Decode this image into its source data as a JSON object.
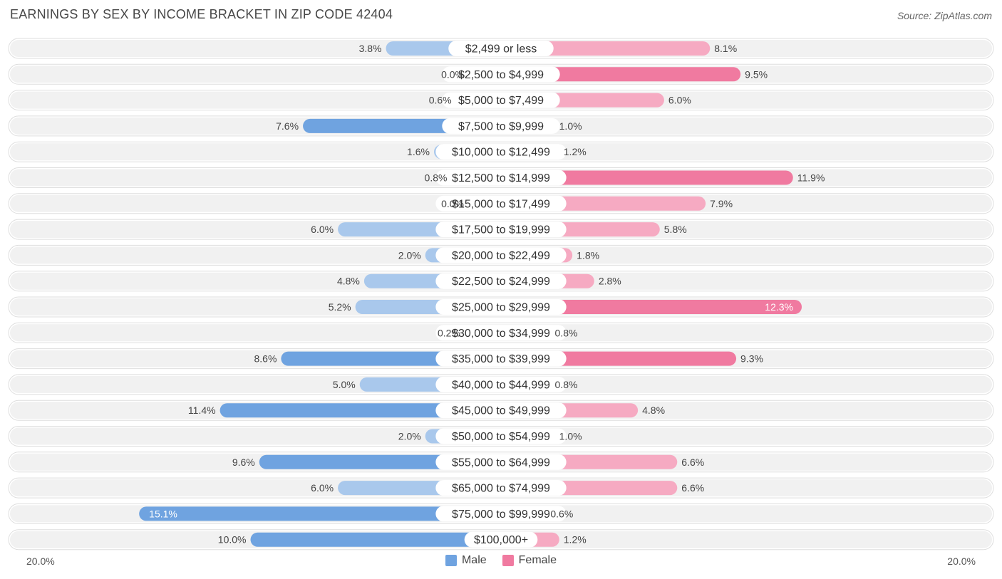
{
  "header": {
    "title": "EARNINGS BY SEX BY INCOME BRACKET IN ZIP CODE 42404",
    "source": "Source: ZipAtlas.com"
  },
  "axis": {
    "left_label": "20.0%",
    "right_label": "20.0%"
  },
  "legend": {
    "male_label": "Male",
    "female_label": "Female"
  },
  "colors": {
    "male": "#6fa3e0",
    "male_light": "#a9c8ec",
    "female": "#f07aa0",
    "female_light": "#f6aac2",
    "row_bg": "#f1f1f1"
  },
  "chart_data": {
    "type": "bar",
    "orientation": "horizontal-diverging",
    "title": "EARNINGS BY SEX BY INCOME BRACKET IN ZIP CODE 42404",
    "xlim": [
      -20,
      20
    ],
    "categories": [
      "$2,499 or less",
      "$2,500 to $4,999",
      "$5,000 to $7,499",
      "$7,500 to $9,999",
      "$10,000 to $12,499",
      "$12,500 to $14,999",
      "$15,000 to $17,499",
      "$17,500 to $19,999",
      "$20,000 to $22,499",
      "$22,500 to $24,999",
      "$25,000 to $29,999",
      "$30,000 to $34,999",
      "$35,000 to $39,999",
      "$40,000 to $44,999",
      "$45,000 to $49,999",
      "$50,000 to $54,999",
      "$55,000 to $64,999",
      "$65,000 to $74,999",
      "$75,000 to $99,999",
      "$100,000+"
    ],
    "series": [
      {
        "name": "Male",
        "values": [
          3.8,
          0.0,
          0.6,
          7.6,
          1.6,
          0.8,
          0.0,
          6.0,
          2.0,
          4.8,
          5.2,
          0.2,
          8.6,
          5.0,
          11.4,
          2.0,
          9.6,
          6.0,
          15.1,
          10.0
        ],
        "labels": [
          "3.8%",
          "0.0%",
          "0.6%",
          "7.6%",
          "1.6%",
          "0.8%",
          "0.0%",
          "6.0%",
          "2.0%",
          "4.8%",
          "5.2%",
          "0.2%",
          "8.6%",
          "5.0%",
          "11.4%",
          "2.0%",
          "9.6%",
          "6.0%",
          "15.1%",
          "10.0%"
        ]
      },
      {
        "name": "Female",
        "values": [
          8.1,
          9.5,
          6.0,
          1.0,
          1.2,
          11.9,
          7.9,
          5.8,
          1.8,
          2.8,
          12.3,
          0.8,
          9.3,
          0.8,
          4.8,
          1.0,
          6.6,
          6.6,
          0.6,
          1.2
        ],
        "labels": [
          "8.1%",
          "9.5%",
          "6.0%",
          "1.0%",
          "1.2%",
          "11.9%",
          "7.9%",
          "5.8%",
          "1.8%",
          "2.8%",
          "12.3%",
          "0.8%",
          "9.3%",
          "0.8%",
          "4.8%",
          "1.0%",
          "6.6%",
          "6.6%",
          "0.6%",
          "1.2%"
        ]
      }
    ]
  }
}
